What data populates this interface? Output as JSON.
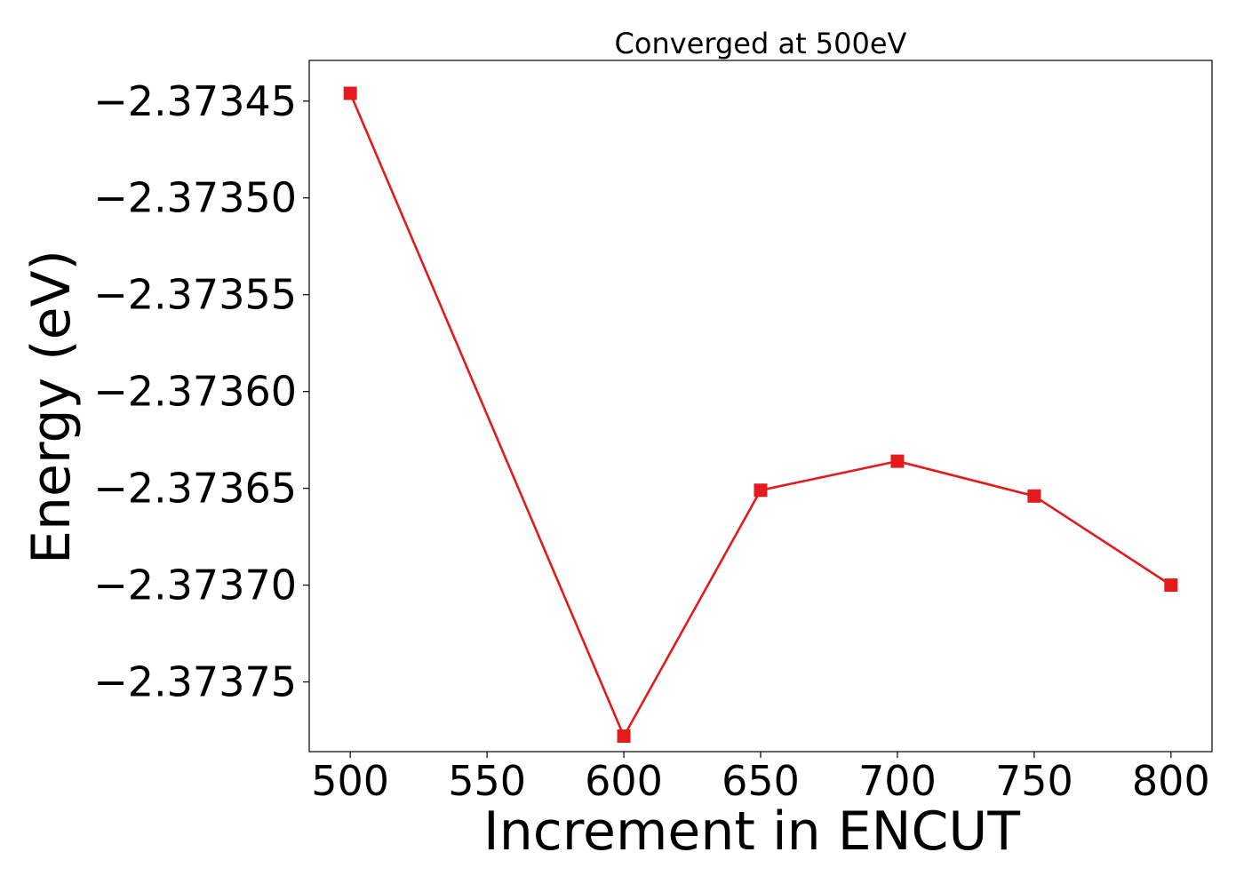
{
  "chart_data": {
    "type": "line",
    "title": "Converged at 500eV",
    "xlabel": "Increment in ENCUT",
    "ylabel": "Energy (eV)",
    "x": [
      500,
      600,
      650,
      700,
      750,
      800
    ],
    "series": [
      {
        "values": [
          -2.373446,
          -2.373778,
          -2.373651,
          -2.373636,
          -2.373654,
          -2.3737
        ],
        "color": "#e41a1c",
        "marker": "square"
      }
    ],
    "xlim": [
      485,
      815
    ],
    "ylim": [
      -2.373786,
      -2.373429
    ],
    "xticks": [
      500,
      550,
      600,
      650,
      700,
      750,
      800
    ],
    "xtick_labels": [
      "500",
      "550",
      "600",
      "650",
      "700",
      "750",
      "800"
    ],
    "yticks": [
      -2.37345,
      -2.3735,
      -2.37355,
      -2.3736,
      -2.37365,
      -2.3737,
      -2.37375
    ],
    "ytick_labels": [
      "−2.37345",
      "−2.37350",
      "−2.37355",
      "−2.37360",
      "−2.37365",
      "−2.37370",
      "−2.37375"
    ],
    "grid": false,
    "legend": "none"
  }
}
